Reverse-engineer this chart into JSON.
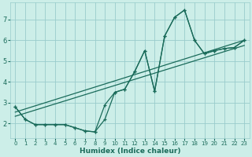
{
  "xlabel": "Humidex (Indice chaleur)",
  "bg_color": "#cceee8",
  "grid_color": "#99cccc",
  "line_color": "#1a6b5a",
  "xlim": [
    -0.5,
    23.5
  ],
  "ylim": [
    1.3,
    7.8
  ],
  "yticks": [
    2,
    3,
    4,
    5,
    6,
    7
  ],
  "xticks": [
    0,
    1,
    2,
    3,
    4,
    5,
    6,
    7,
    8,
    9,
    10,
    11,
    12,
    13,
    14,
    15,
    16,
    17,
    18,
    19,
    20,
    21,
    22,
    23
  ],
  "curve_main_x": [
    0,
    1,
    2,
    3,
    4,
    5,
    6,
    7,
    8,
    9,
    10,
    11,
    12,
    13,
    14,
    15,
    16,
    17,
    18,
    19,
    20,
    21,
    22,
    23
  ],
  "curve_main_y": [
    2.8,
    2.2,
    1.95,
    1.95,
    1.95,
    1.95,
    1.8,
    1.65,
    1.6,
    2.2,
    3.5,
    3.65,
    4.5,
    5.5,
    3.55,
    6.2,
    7.1,
    7.45,
    6.0,
    5.35,
    5.5,
    5.6,
    5.65,
    6.0
  ],
  "curve_loop_x": [
    0,
    1,
    2,
    3,
    4,
    5,
    6,
    7,
    8,
    9,
    10,
    11,
    12,
    13,
    14,
    15,
    16,
    17,
    18,
    19,
    20,
    21,
    22,
    23
  ],
  "curve_loop_y": [
    2.8,
    2.2,
    1.95,
    1.95,
    1.95,
    1.95,
    1.8,
    1.65,
    1.6,
    2.9,
    3.5,
    3.65,
    4.5,
    5.5,
    3.55,
    6.2,
    7.1,
    7.45,
    6.0,
    5.35,
    5.5,
    5.6,
    5.65,
    6.0
  ],
  "line1_x": [
    0,
    23
  ],
  "line1_y": [
    2.55,
    6.0
  ],
  "line2_x": [
    0,
    23
  ],
  "line2_y": [
    2.35,
    5.75
  ]
}
